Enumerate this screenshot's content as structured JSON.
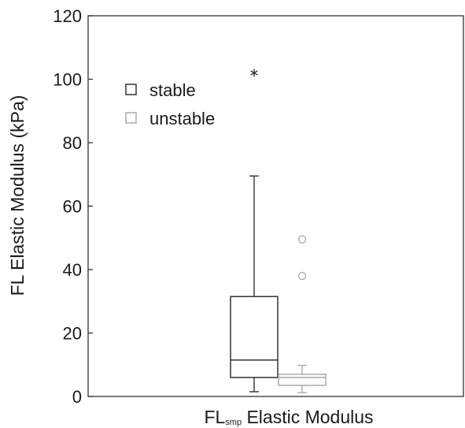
{
  "chart_data": {
    "type": "boxplot",
    "ylabel": "FL Elastic Modulus (kPa)",
    "xlabel": {
      "main": "FL",
      "subscript": "smp",
      "rest": " Elastic Modulus"
    },
    "ylim": [
      0,
      120
    ],
    "yticks": [
      0,
      20,
      40,
      60,
      80,
      100,
      120
    ],
    "grid": false,
    "legend_position": "top-left",
    "series": [
      {
        "name": "stable",
        "color": "#333333",
        "whisker_low": 1.5,
        "q1": 6,
        "median": 11.5,
        "q3": 31.5,
        "whisker_high": 69.5,
        "outliers": [
          {
            "value": 102,
            "marker": "asterisk"
          }
        ]
      },
      {
        "name": "unstable",
        "color": "#aaaaaa",
        "whisker_low": 1.2,
        "q1": 3.5,
        "median": 6,
        "q3": 7,
        "whisker_high": 9.8,
        "outliers": [
          {
            "value": 49.5,
            "marker": "circle"
          },
          {
            "value": 38,
            "marker": "circle"
          }
        ]
      }
    ]
  }
}
